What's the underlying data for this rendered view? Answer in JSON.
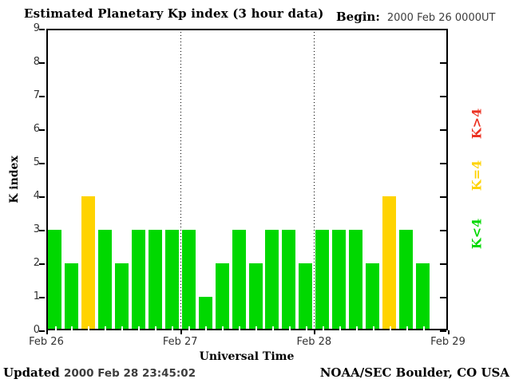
{
  "title": "Estimated Planetary Kp index (3 hour data)",
  "begin": {
    "label": "Begin:",
    "value": "2000 Feb 26 0000UT"
  },
  "axes": {
    "y_label": "K index",
    "x_label": "Universal Time",
    "y_ticks": [
      0,
      1,
      2,
      3,
      4,
      5,
      6,
      7,
      8,
      9
    ],
    "x_ticks": [
      "Feb 26",
      "Feb 27",
      "Feb 28",
      "Feb 29"
    ]
  },
  "legend": [
    {
      "label": "K>4",
      "color": "#ec3323"
    },
    {
      "label": "K=4",
      "color": "#ffd300"
    },
    {
      "label": "K<4",
      "color": "#00d800"
    }
  ],
  "footer": {
    "updated_label": "Updated",
    "updated_value": "2000 Feb 28 23:45:02",
    "credit": "NOAA/SEC Boulder, CO USA"
  },
  "chart_data": {
    "type": "bar",
    "title": "Estimated Planetary Kp index (3 hour data)",
    "xlabel": "Universal Time",
    "ylabel": "K index",
    "ylim": [
      0,
      9
    ],
    "bin_hours": 3,
    "total_slots": 24,
    "slots_per_day": 8,
    "x_day_labels": [
      "Feb 26",
      "Feb 27",
      "Feb 28",
      "Feb 29"
    ],
    "values": [
      3,
      2,
      4,
      3,
      2,
      3,
      3,
      3,
      3,
      1,
      2,
      3,
      2,
      3,
      3,
      2,
      3,
      3,
      3,
      2,
      4,
      3,
      2
    ],
    "values_by_day": {
      "Feb 26": [
        3,
        2,
        4,
        3,
        2,
        3,
        3,
        3
      ],
      "Feb 27": [
        3,
        1,
        2,
        3,
        2,
        3,
        3,
        2
      ],
      "Feb 28": [
        3,
        3,
        3,
        2,
        4,
        3,
        2
      ]
    },
    "colors": {
      "low": "#00d800",
      "mid": "#ffd300",
      "high": "#ec3323"
    },
    "color_rule": "green K<4, yellow K=4, red K>4",
    "grid": "dotted vertical lines at day boundaries",
    "legend_position": "right, rotated 90deg"
  }
}
